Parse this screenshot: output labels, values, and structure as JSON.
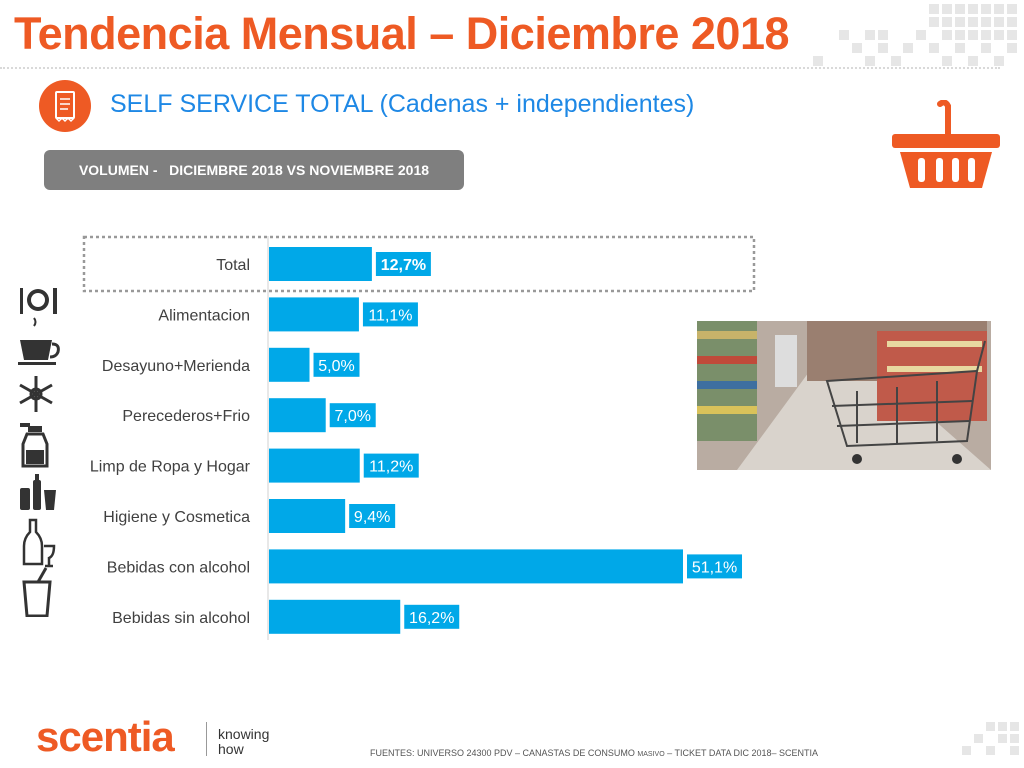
{
  "title": "Tendencia Mensual – Diciembre 2018",
  "subtitle": "SELF SERVICE TOTAL (Cadenas + independientes)",
  "pill_label": "VOLUMEN -   DICIEMBRE 2018 VS NOVIEMBRE 2018",
  "brand": {
    "logo": "scentia",
    "tagline_line1": "knowing",
    "tagline_line2": "how"
  },
  "footer": {
    "part1": "FUENTES: UNIVERSO 24300 PDV – CANASTAS DE CONSUMO ",
    "part_small": "MASIVO",
    "part2": " – TICKET DATA DIC 2018– SCENTIA"
  },
  "colors": {
    "accent": "#ee5a24",
    "bar": "#00a8e8",
    "subtitle": "#1e88e5",
    "pill": "#7f7f7f"
  },
  "side_icons": [
    "fork-plate-knife-icon",
    "coffee-cup-icon",
    "snowflake-icon",
    "spray-bottle-icon",
    "bottles-icon",
    "wine-bottle-icon",
    "soda-cup-icon"
  ],
  "chart_data": {
    "type": "bar",
    "orientation": "horizontal",
    "categories": [
      "Total",
      "Alimentacion",
      "Desayuno+Merienda",
      "Perecederos+Frio",
      "Limp de Ropa y Hogar",
      "Higiene y Cosmetica",
      "Bebidas con alcohol",
      "Bebidas sin alcohol"
    ],
    "values": [
      12.7,
      11.1,
      5.0,
      7.0,
      11.2,
      9.4,
      51.1,
      16.2
    ],
    "labels": [
      "12,7%",
      "11,1%",
      "5,0%",
      "7,0%",
      "11,2%",
      "9,4%",
      "51,1%",
      "16,2%"
    ],
    "highlight": "Total",
    "xlim": [
      0,
      51.1
    ]
  }
}
